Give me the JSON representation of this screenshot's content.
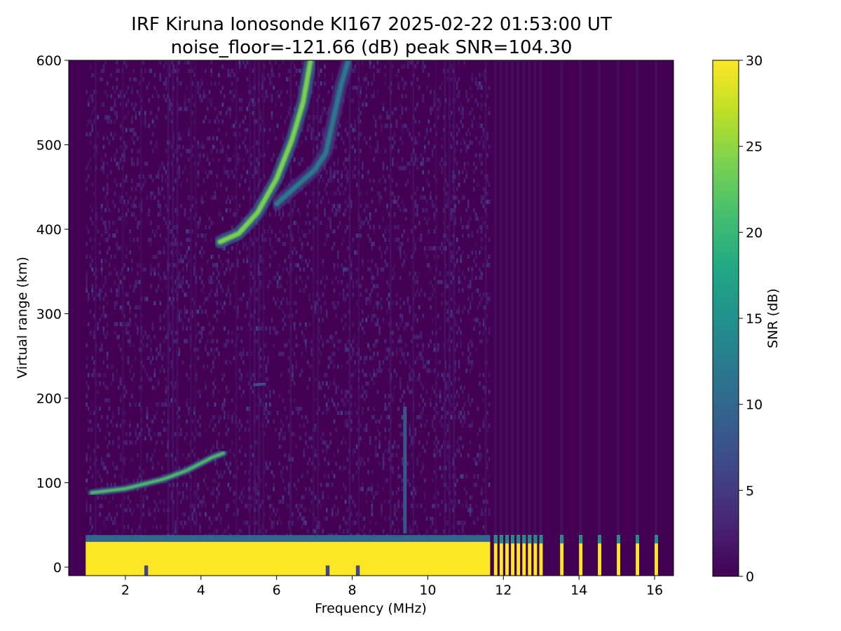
{
  "chart_data": {
    "type": "heatmap",
    "title": "IRF Kiruna Ionosonde KI167 2025-02-22 01:53:00  UT",
    "subtitle": "noise_floor=-121.66 (dB) peak SNR=104.30",
    "xlabel": "Frequency (MHz)",
    "ylabel": "Virtual range (km)",
    "xlim": [
      0.5,
      16.5
    ],
    "ylim": [
      -10,
      600
    ],
    "x_ticks": [
      "2",
      "4",
      "6",
      "8",
      "10",
      "12",
      "14",
      "16"
    ],
    "y_ticks": [
      "0",
      "100",
      "200",
      "300",
      "400",
      "500",
      "600"
    ],
    "colorbar": {
      "label": "SNR (dB)",
      "colormap": "viridis",
      "range": [
        0,
        30
      ],
      "ticks": [
        "0",
        "5",
        "10",
        "15",
        "20",
        "25",
        "30"
      ]
    },
    "grid": false,
    "sweep_start_mhz": 0.95,
    "sweep_continuous_end_mhz": 11.65,
    "discrete_channels_mhz": [
      11.75,
      11.9,
      12.05,
      12.2,
      12.35,
      12.5,
      12.65,
      12.8,
      12.95,
      13.5,
      14.0,
      14.5,
      15.0,
      15.5,
      16.0
    ],
    "features": [
      {
        "name": "ground clutter / direct wave",
        "x_range_mhz": [
          0.95,
          11.65
        ],
        "range_km": [
          0,
          30
        ],
        "snr_db": 30
      },
      {
        "name": "E-layer trace",
        "points": [
          [
            1.1,
            88
          ],
          [
            2.0,
            93
          ],
          [
            3.0,
            104
          ],
          [
            3.6,
            114
          ],
          [
            4.0,
            123
          ],
          [
            4.3,
            130
          ],
          [
            4.6,
            135
          ]
        ],
        "snr_db": 22
      },
      {
        "name": "sporadic patch",
        "points": [
          [
            5.4,
            215
          ],
          [
            5.7,
            218
          ]
        ],
        "snr_db": 9
      },
      {
        "name": "F-layer trace (o-mode)",
        "points": [
          [
            4.5,
            385
          ],
          [
            5.0,
            395
          ],
          [
            5.5,
            420
          ],
          [
            6.0,
            460
          ],
          [
            6.4,
            505
          ],
          [
            6.7,
            550
          ],
          [
            6.9,
            600
          ]
        ],
        "snr_db": 24
      },
      {
        "name": "F-layer trace (x-mode)",
        "points": [
          [
            6.0,
            430
          ],
          [
            6.5,
            450
          ],
          [
            7.0,
            470
          ],
          [
            7.3,
            490
          ],
          [
            7.5,
            530
          ],
          [
            7.7,
            570
          ],
          [
            7.9,
            600
          ]
        ],
        "snr_db": 12
      },
      {
        "name": "interference line",
        "x_mhz": 9.35,
        "range_km": [
          40,
          190
        ],
        "snr_db": 8
      }
    ]
  }
}
